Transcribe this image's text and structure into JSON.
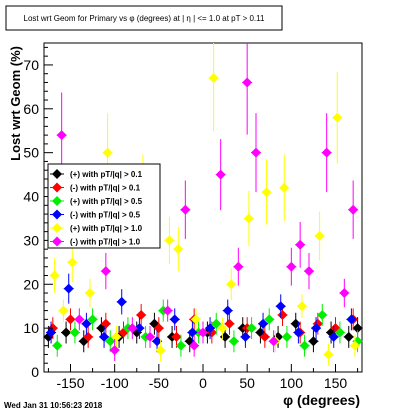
{
  "chart_data": {
    "type": "scatter",
    "title": "Lost wrt Geom for Primary vs φ (degrees) at | η | <= 1.0 at pT > 0.11",
    "xlabel": "φ (degrees)",
    "ylabel": "Lost wrt Geom (%)",
    "xlim": [
      -180,
      180
    ],
    "ylim": [
      0,
      75
    ],
    "x_ticks": [
      -150,
      -100,
      -50,
      0,
      50,
      100,
      150
    ],
    "y_ticks": [
      0,
      10,
      20,
      30,
      40,
      50,
      60,
      70
    ],
    "legend_position": "middle-left",
    "grid": false,
    "timestamp": "Wed Jan 31 10:56:23 2018",
    "series": [
      {
        "name": "(+) with pT/|q| > 0.1",
        "color": "#000000",
        "marker": "diamond",
        "x": [
          -175,
          -155,
          -135,
          -115,
          -95,
          -75,
          -55,
          -35,
          -15,
          5,
          25,
          45,
          65,
          85,
          105,
          125,
          145,
          165,
          175
        ],
        "y": [
          8,
          9,
          7,
          10,
          8,
          9,
          11,
          8,
          7,
          9,
          8,
          10,
          9,
          8,
          11,
          7,
          9,
          8,
          10
        ]
      },
      {
        "name": "(-) with pT/|q| > 0.1",
        "color": "#ff0000",
        "marker": "diamond",
        "x": [
          -170,
          -150,
          -130,
          -110,
          -90,
          -70,
          -50,
          -30,
          -10,
          10,
          30,
          50,
          70,
          90,
          110,
          130,
          150,
          170
        ],
        "y": [
          10,
          12,
          8,
          11,
          9,
          13,
          10,
          8,
          12,
          9,
          11,
          10,
          8,
          13,
          9,
          11,
          10,
          12
        ]
      },
      {
        "name": "(+) with pT/|q| > 0.5",
        "color": "#00ee00",
        "marker": "diamond",
        "x": [
          -165,
          -145,
          -125,
          -105,
          -85,
          -65,
          -45,
          -25,
          -5,
          15,
          35,
          55,
          75,
          95,
          115,
          135,
          155,
          175
        ],
        "y": [
          6,
          9,
          12,
          7,
          10,
          8,
          14,
          6,
          9,
          11,
          7,
          10,
          12,
          8,
          6,
          13,
          9,
          7
        ]
      },
      {
        "name": "(-) with pT/|q| > 0.5",
        "color": "#0000ff",
        "marker": "diamond",
        "x": [
          -172,
          -152,
          -132,
          -112,
          -92,
          -72,
          -52,
          -32,
          -12,
          8,
          28,
          48,
          68,
          88,
          108,
          128,
          148,
          168
        ],
        "y": [
          9,
          19,
          11,
          8,
          16,
          10,
          7,
          12,
          9,
          10,
          14,
          8,
          11,
          15,
          9,
          10,
          8,
          12
        ]
      },
      {
        "name": "(+) with pT/|q| > 1.0",
        "color": "#ffff00",
        "marker": "diamond",
        "x": [
          -168,
          -148,
          -128,
          -108,
          -88,
          -68,
          -48,
          -28,
          -8,
          12,
          32,
          52,
          72,
          92,
          112,
          132,
          152,
          172,
          -158,
          -98,
          -38,
          22,
          82,
          142
        ],
        "y": [
          22,
          25,
          18,
          50,
          35,
          42,
          5,
          28,
          12,
          67,
          20,
          35,
          41,
          42,
          15,
          31,
          58,
          6,
          14,
          8,
          30,
          10,
          7,
          4
        ]
      },
      {
        "name": "(-) with pT/|q| > 1.0",
        "color": "#ff00ff",
        "marker": "diamond",
        "x": [
          -160,
          -140,
          -120,
          -100,
          -80,
          -60,
          -40,
          -20,
          0,
          20,
          40,
          60,
          80,
          100,
          120,
          140,
          160,
          170,
          -110,
          -10,
          50,
          110
        ],
        "y": [
          54,
          12,
          40,
          5,
          10,
          8,
          14,
          37,
          9,
          45,
          24,
          50,
          7,
          24,
          23,
          50,
          18,
          37,
          23,
          6,
          66,
          29
        ]
      }
    ]
  }
}
